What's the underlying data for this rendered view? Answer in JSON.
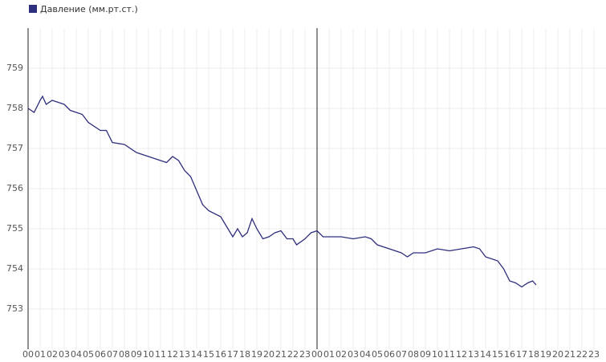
{
  "chart_data": {
    "type": "line",
    "series": [
      {
        "name": "Давление (мм.рт.ст.)",
        "color": "#2e2e7e",
        "x": [
          0,
          0.5,
          1,
          1.2,
          1.5,
          2,
          3,
          3.5,
          4,
          4.5,
          5,
          6,
          6.5,
          7,
          8,
          9,
          10,
          11,
          11.5,
          12,
          12.5,
          13,
          13.5,
          14,
          14.5,
          15,
          16,
          16.5,
          17,
          17.4,
          17.8,
          18.2,
          18.6,
          19,
          19.5,
          20,
          20.5,
          21,
          21.5,
          22,
          22.3,
          23,
          23.5,
          24,
          24.5,
          25,
          26,
          27,
          28,
          28.5,
          29,
          30,
          31,
          31.5,
          32,
          33,
          34,
          35,
          36,
          37,
          37.5,
          38,
          39,
          39.5,
          40,
          40.5,
          41,
          41.5,
          41.9,
          42.2
        ],
        "values": [
          758.0,
          757.9,
          758.2,
          758.3,
          758.1,
          758.2,
          758.1,
          757.95,
          757.9,
          757.85,
          757.65,
          757.45,
          757.45,
          757.15,
          757.1,
          756.9,
          756.8,
          756.7,
          756.65,
          756.8,
          756.7,
          756.45,
          756.3,
          755.95,
          755.6,
          755.45,
          755.3,
          755.05,
          754.8,
          755.0,
          754.8,
          754.9,
          755.25,
          755.0,
          754.75,
          754.8,
          754.9,
          754.95,
          754.75,
          754.75,
          754.6,
          754.75,
          754.9,
          754.95,
          754.8,
          754.8,
          754.8,
          754.75,
          754.8,
          754.75,
          754.6,
          754.5,
          754.4,
          754.3,
          754.4,
          754.4,
          754.5,
          754.45,
          754.5,
          754.55,
          754.5,
          754.3,
          754.2,
          754.0,
          753.7,
          753.65,
          753.55,
          753.65,
          753.7,
          753.6
        ]
      }
    ],
    "ylim": [
      752,
      760
    ],
    "yticks": [
      753,
      754,
      755,
      756,
      757,
      758,
      759
    ],
    "xlim": [
      0,
      48
    ],
    "xticks": [
      {
        "value": 0,
        "label": "00"
      },
      {
        "value": 1,
        "label": "01"
      },
      {
        "value": 2,
        "label": "02"
      },
      {
        "value": 3,
        "label": "03"
      },
      {
        "value": 4,
        "label": "04"
      },
      {
        "value": 5,
        "label": "05"
      },
      {
        "value": 6,
        "label": "06"
      },
      {
        "value": 7,
        "label": "07"
      },
      {
        "value": 8,
        "label": "08"
      },
      {
        "value": 9,
        "label": "09"
      },
      {
        "value": 10,
        "label": "10"
      },
      {
        "value": 11,
        "label": "11"
      },
      {
        "value": 12,
        "label": "12"
      },
      {
        "value": 13,
        "label": "13"
      },
      {
        "value": 14,
        "label": "14"
      },
      {
        "value": 15,
        "label": "15"
      },
      {
        "value": 16,
        "label": "16"
      },
      {
        "value": 17,
        "label": "17"
      },
      {
        "value": 18,
        "label": "18"
      },
      {
        "value": 19,
        "label": "19"
      },
      {
        "value": 20,
        "label": "20"
      },
      {
        "value": 21,
        "label": "21"
      },
      {
        "value": 22,
        "label": "22"
      },
      {
        "value": 23,
        "label": "23"
      },
      {
        "value": 24,
        "label": "00"
      },
      {
        "value": 25,
        "label": "01"
      },
      {
        "value": 26,
        "label": "02"
      },
      {
        "value": 27,
        "label": "03"
      },
      {
        "value": 28,
        "label": "04"
      },
      {
        "value": 29,
        "label": "05"
      },
      {
        "value": 30,
        "label": "06"
      },
      {
        "value": 31,
        "label": "07"
      },
      {
        "value": 32,
        "label": "08"
      },
      {
        "value": 33,
        "label": "09"
      },
      {
        "value": 34,
        "label": "10"
      },
      {
        "value": 35,
        "label": "11"
      },
      {
        "value": 36,
        "label": "12"
      },
      {
        "value": 37,
        "label": "13"
      },
      {
        "value": 38,
        "label": "14"
      },
      {
        "value": 39,
        "label": "15"
      },
      {
        "value": 40,
        "label": "16"
      },
      {
        "value": 41,
        "label": "17"
      },
      {
        "value": 42,
        "label": "18"
      },
      {
        "value": 43,
        "label": "19"
      },
      {
        "value": 44,
        "label": "20"
      },
      {
        "value": 45,
        "label": "21"
      },
      {
        "value": 46,
        "label": "22"
      },
      {
        "value": 47,
        "label": "23"
      }
    ],
    "grid": true,
    "legend": "top-left"
  }
}
